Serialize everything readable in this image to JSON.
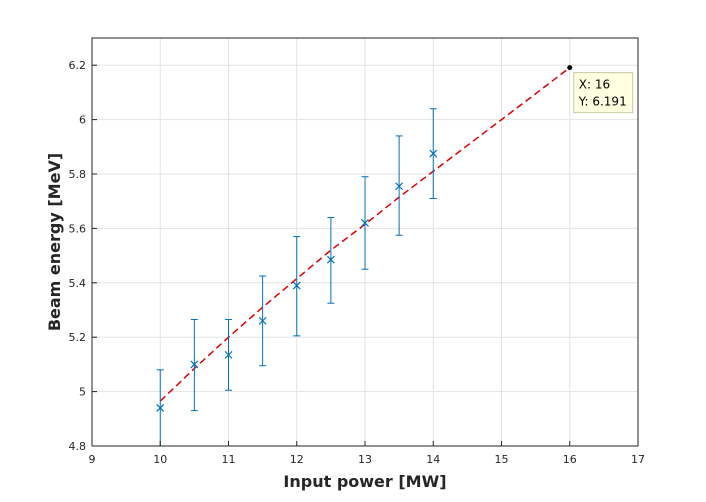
{
  "chart_data": {
    "type": "scatter",
    "title": "",
    "xlabel": "Input power [MW]",
    "ylabel": "Beam energy [MeV]",
    "xlim": [
      9,
      17
    ],
    "ylim": [
      4.8,
      6.3
    ],
    "xticks": [
      9,
      10,
      11,
      12,
      13,
      14,
      15,
      16,
      17
    ],
    "yticks": [
      4.8,
      5,
      5.2,
      5.4,
      5.6,
      5.8,
      6,
      6.2
    ],
    "grid": true,
    "series": [
      {
        "style": "markers-with-errorbars",
        "marker": "x",
        "color": "#0072BD",
        "x": [
          10,
          10.5,
          11,
          11.5,
          12,
          12.5,
          13,
          13.5,
          14
        ],
        "y": [
          4.94,
          5.1,
          5.135,
          5.26,
          5.39,
          5.485,
          5.62,
          5.755,
          5.875
        ],
        "yerr_low": [
          4.8,
          4.93,
          5.005,
          5.095,
          5.205,
          5.325,
          5.45,
          5.575,
          5.71
        ],
        "yerr_high": [
          5.08,
          5.265,
          5.265,
          5.425,
          5.57,
          5.64,
          5.79,
          5.94,
          6.04
        ]
      },
      {
        "style": "dashed-line",
        "color": "#E00000",
        "x": [
          10,
          10.5,
          11,
          11.5,
          12,
          12.5,
          13,
          13.5,
          14,
          14.5,
          15,
          15.5,
          16
        ],
        "y": [
          4.965,
          5.085,
          5.2,
          5.31,
          5.415,
          5.52,
          5.615,
          5.715,
          5.81,
          5.905,
          6.0,
          6.095,
          6.191
        ]
      }
    ],
    "datatip": {
      "x_value": 16,
      "y_value": 6.191,
      "x_text": "X: 16",
      "y_text": "Y: 6.191"
    }
  }
}
